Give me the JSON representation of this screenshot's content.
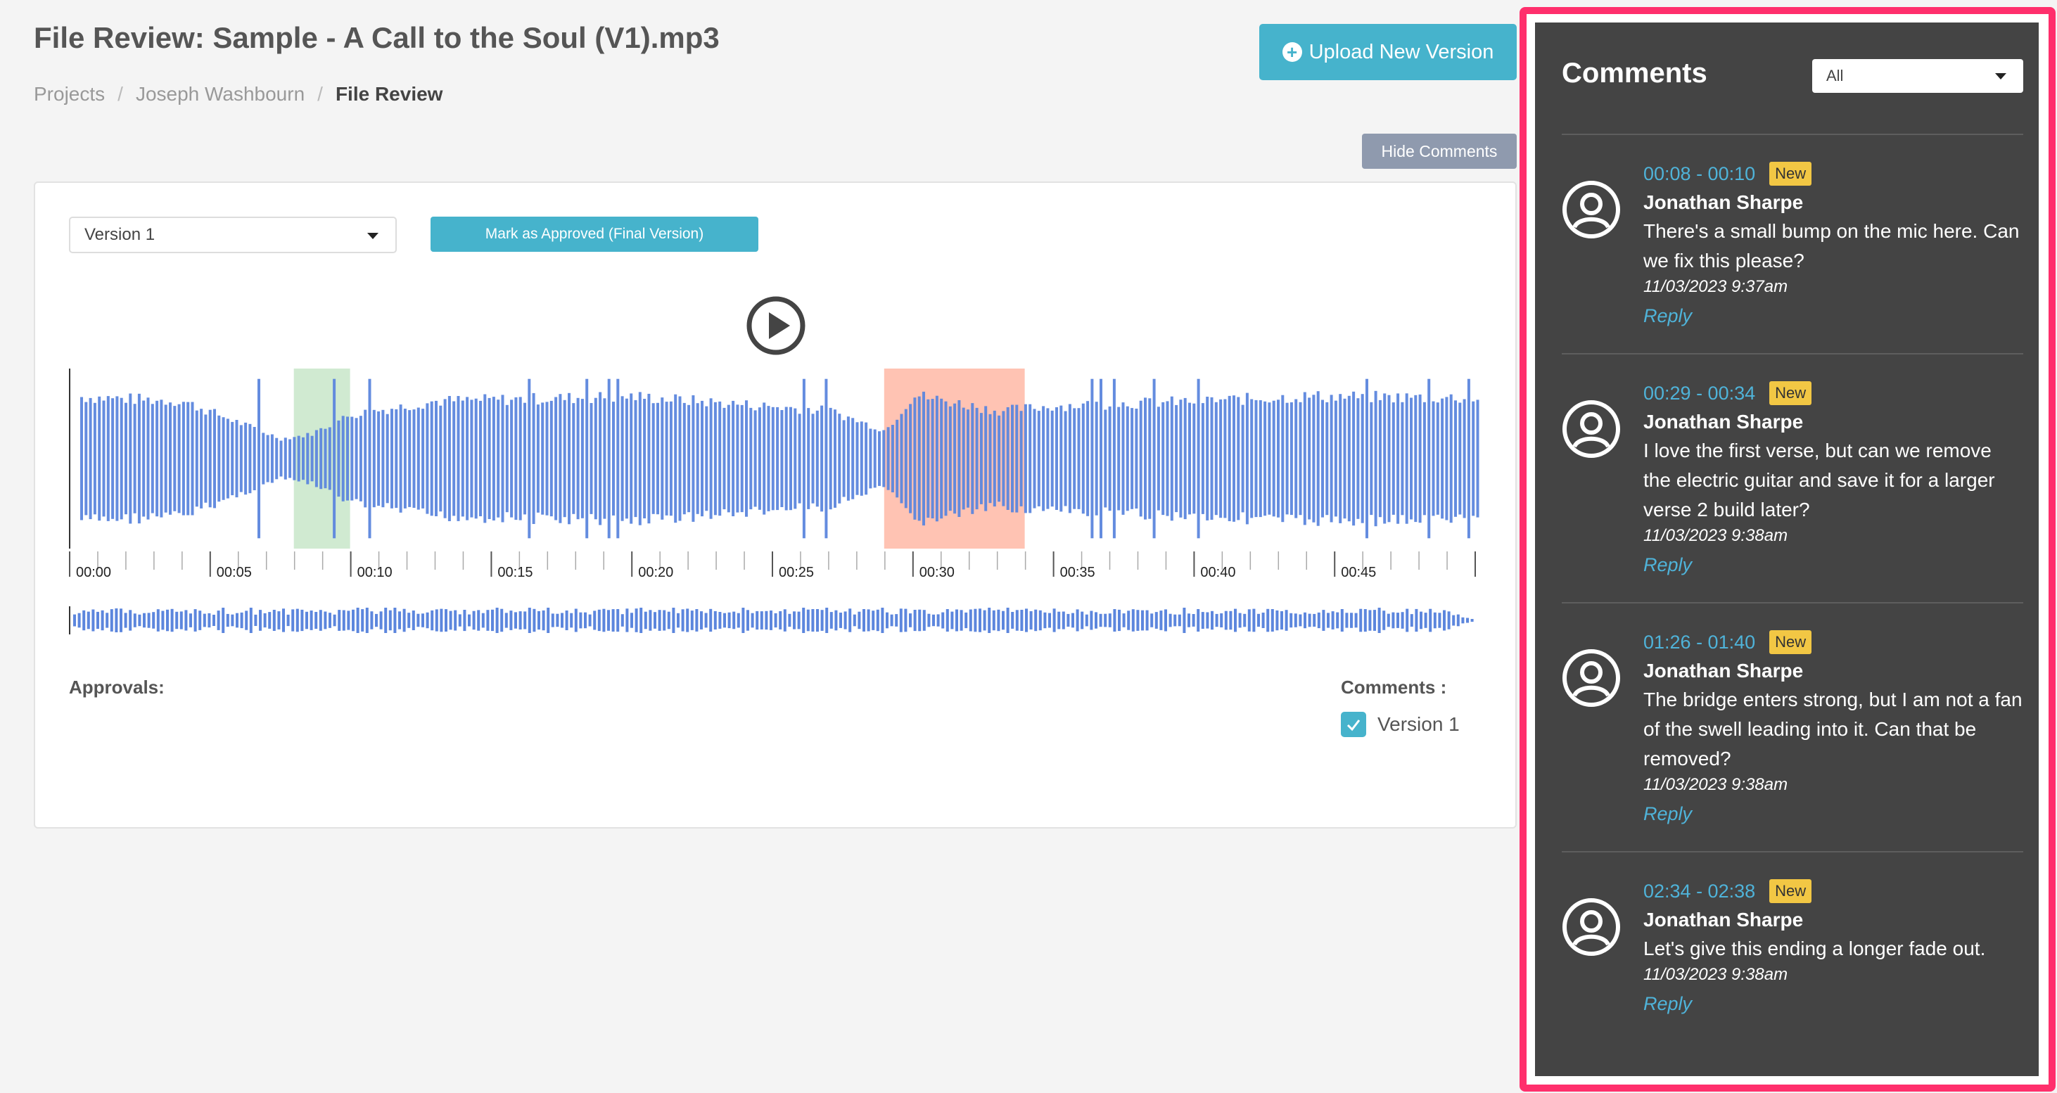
{
  "header": {
    "title": "File Review: Sample - A Call to the Soul (V1).mp3",
    "breadcrumb": [
      "Projects",
      "Joseph Washbourn",
      "File Review"
    ],
    "upload_label": "Upload New Version",
    "hide_comments_label": "Hide Comments"
  },
  "player": {
    "version_select": "Version 1",
    "approve_label": "Mark as Approved (Final Version)",
    "timeline_labels": [
      "00:00",
      "00:05",
      "00:10",
      "00:15",
      "00:20",
      "00:25",
      "00:30",
      "00:35",
      "00:40",
      "00:45"
    ],
    "regions": [
      {
        "start": "00:08",
        "end": "00:10",
        "color": "#c8e6c9"
      },
      {
        "start": "00:29",
        "end": "00:34",
        "color": "#ffb8a6"
      }
    ],
    "wave_color": "#5c86dd",
    "approvals_label": "Approvals:",
    "comments_filter_label": "Comments :",
    "comments_filter_option": "Version 1",
    "comments_filter_checked": true
  },
  "panel": {
    "title": "Comments",
    "filter": "All",
    "comments": [
      {
        "time": "00:08 - 00:10",
        "badge": "New",
        "author": "Jonathan Sharpe",
        "text": "There's a small bump on the mic here. Can we fix this please?",
        "date": "11/03/2023 9:37am",
        "reply": "Reply"
      },
      {
        "time": "00:29 - 00:34",
        "badge": "New",
        "author": "Jonathan Sharpe",
        "text": "I love the first verse, but can we remove the electric guitar and save it for a larger verse 2 build later?",
        "date": "11/03/2023 9:38am",
        "reply": "Reply"
      },
      {
        "time": "01:26 - 01:40",
        "badge": "New",
        "author": "Jonathan Sharpe",
        "text": "The bridge enters strong, but I am not a fan of the swell leading into it. Can that be removed?",
        "date": "11/03/2023 9:38am",
        "reply": "Reply"
      },
      {
        "time": "02:34 - 02:38",
        "badge": "New",
        "author": "Jonathan Sharpe",
        "text": "Let's give this ending a longer fade out.",
        "date": "11/03/2023 9:38am",
        "reply": "Reply"
      }
    ]
  },
  "colors": {
    "accent": "#46b3cc",
    "panel_bg": "#444444",
    "highlight_border": "#ff2f6c",
    "badge": "#f2c744",
    "link": "#4fb3d9"
  }
}
